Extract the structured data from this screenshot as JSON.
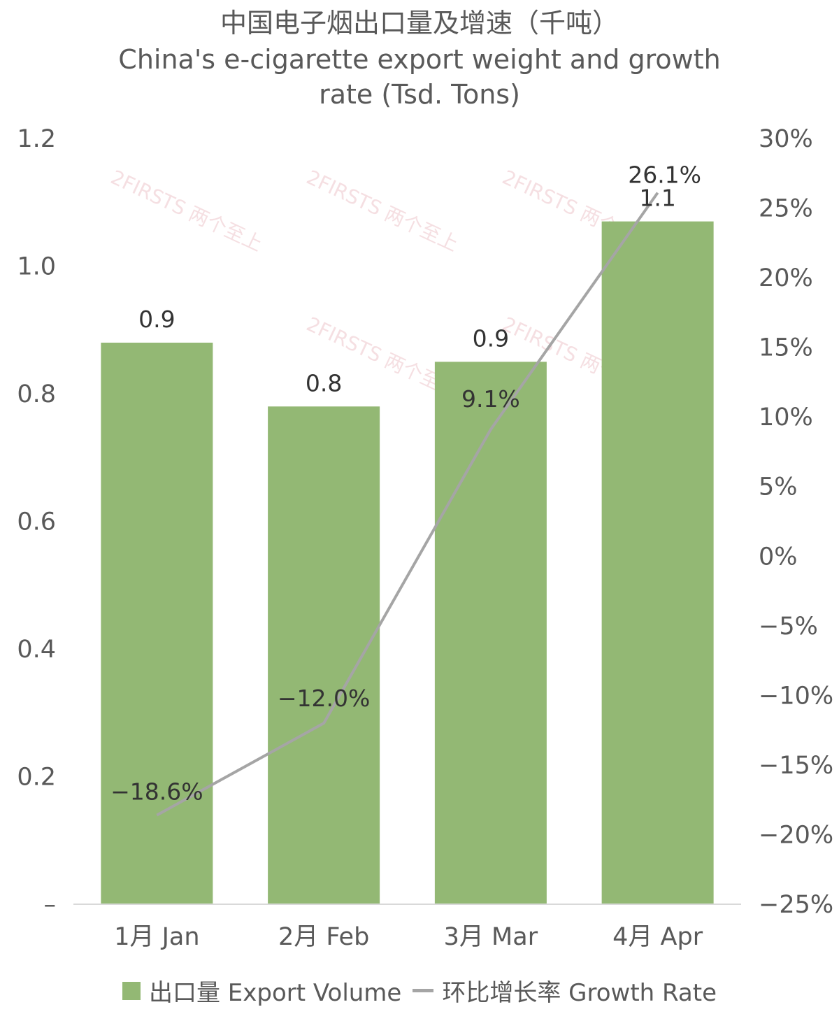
{
  "title_cn": "中国电子烟出口量及增速（千吨）",
  "title_en_line1": "China's e-cigarette export weight and growth",
  "title_en_line2": "rate (Tsd. Tons)",
  "watermark": "2FIRSTS 两个至上",
  "chart_data": {
    "type": "bar+line",
    "categories": [
      "1月 Jan",
      "2月 Feb",
      "3月 Mar",
      "4月 Apr"
    ],
    "series": [
      {
        "name": "出口量 Export Volume",
        "type": "bar",
        "axis": "left",
        "values": [
          0.88,
          0.78,
          0.85,
          1.07
        ],
        "labels": [
          "0.9",
          "0.8",
          "0.9",
          "1.1"
        ],
        "color": "#93B874"
      },
      {
        "name": "环比增长率 Growth Rate",
        "type": "line",
        "axis": "right",
        "values": [
          -18.6,
          -12.0,
          9.1,
          26.1
        ],
        "labels": [
          "−18.6%",
          "−12.0%",
          "9.1%",
          "26.1%"
        ],
        "color": "#A5A5A5"
      }
    ],
    "y_left": {
      "min": 0,
      "max": 1.2,
      "ticks": [
        0,
        0.2,
        0.4,
        0.6,
        0.8,
        1.0,
        1.2
      ],
      "tick_labels": [
        "–",
        "0.2",
        "0.4",
        "0.6",
        "0.8",
        "1.0",
        "1.2"
      ]
    },
    "y_right": {
      "min": -25,
      "max": 30,
      "ticks": [
        -25,
        -20,
        -15,
        -10,
        -5,
        0,
        5,
        10,
        15,
        20,
        25,
        30
      ],
      "tick_labels": [
        "−25%",
        "−20%",
        "−15%",
        "−10%",
        "−5%",
        "0%",
        "5%",
        "10%",
        "15%",
        "20%",
        "25%",
        "30%"
      ]
    },
    "legend_position": "bottom"
  },
  "legend": {
    "bar_label": "出口量 Export Volume",
    "line_label": "环比增长率 Growth Rate"
  },
  "colors": {
    "bar": "#93B874",
    "line": "#A5A5A5",
    "axis": "#D9D9D9"
  }
}
